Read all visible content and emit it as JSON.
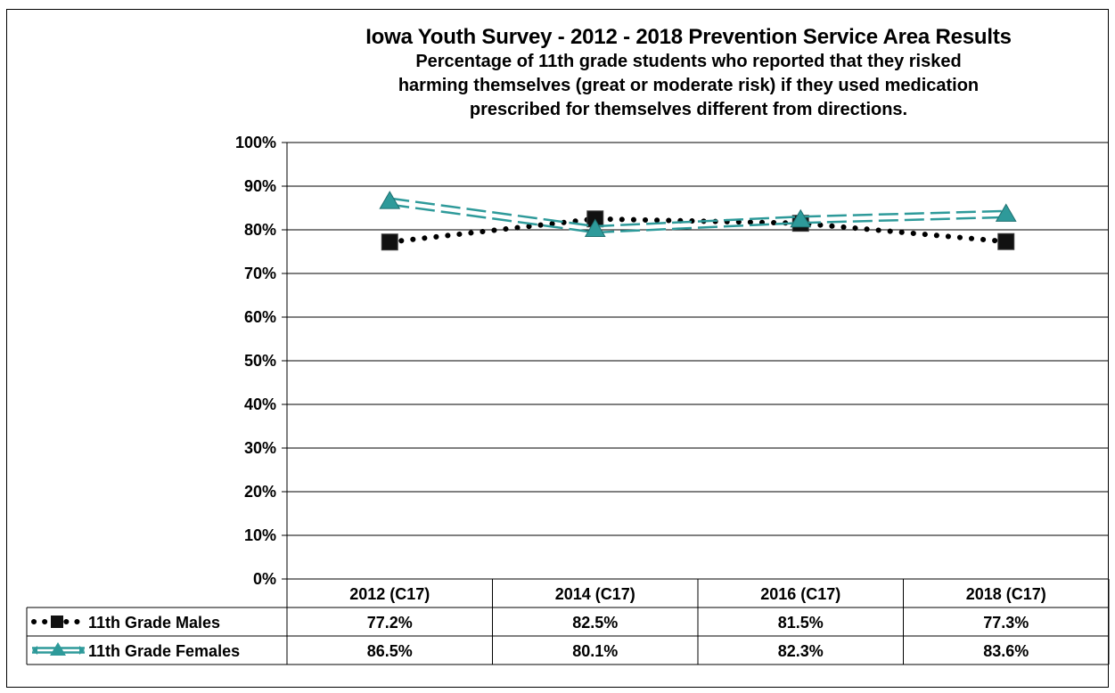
{
  "chart_data": {
    "type": "line",
    "title": "Iowa Youth Survey - 2012 - 2018 Prevention Service Area Results",
    "subtitle_lines": [
      "Percentage of 11th grade students who reported that they risked",
      "harming themselves (great or moderate risk) if they used medication",
      "prescribed for themselves different from directions."
    ],
    "categories": [
      "2012 (C17)",
      "2014 (C17)",
      "2016 (C17)",
      "2018 (C17)"
    ],
    "ylim": [
      0,
      100
    ],
    "yticks": [
      "0%",
      "10%",
      "20%",
      "30%",
      "40%",
      "50%",
      "60%",
      "70%",
      "80%",
      "90%",
      "100%"
    ],
    "grid": true,
    "legend": "data-table",
    "series": [
      {
        "name": "11th Grade Males",
        "values": [
          77.2,
          82.5,
          81.5,
          77.3
        ],
        "labels": [
          "77.2%",
          "82.5%",
          "81.5%",
          "77.3%"
        ],
        "color": "#000000",
        "line_style": "dotted",
        "marker": "square"
      },
      {
        "name": "11th Grade Females",
        "values": [
          86.5,
          80.1,
          82.3,
          83.6
        ],
        "labels": [
          "86.5%",
          "80.1%",
          "82.3%",
          "83.6%"
        ],
        "color": "#2e9a9a",
        "line_style": "double-dashed",
        "marker": "triangle"
      }
    ]
  }
}
